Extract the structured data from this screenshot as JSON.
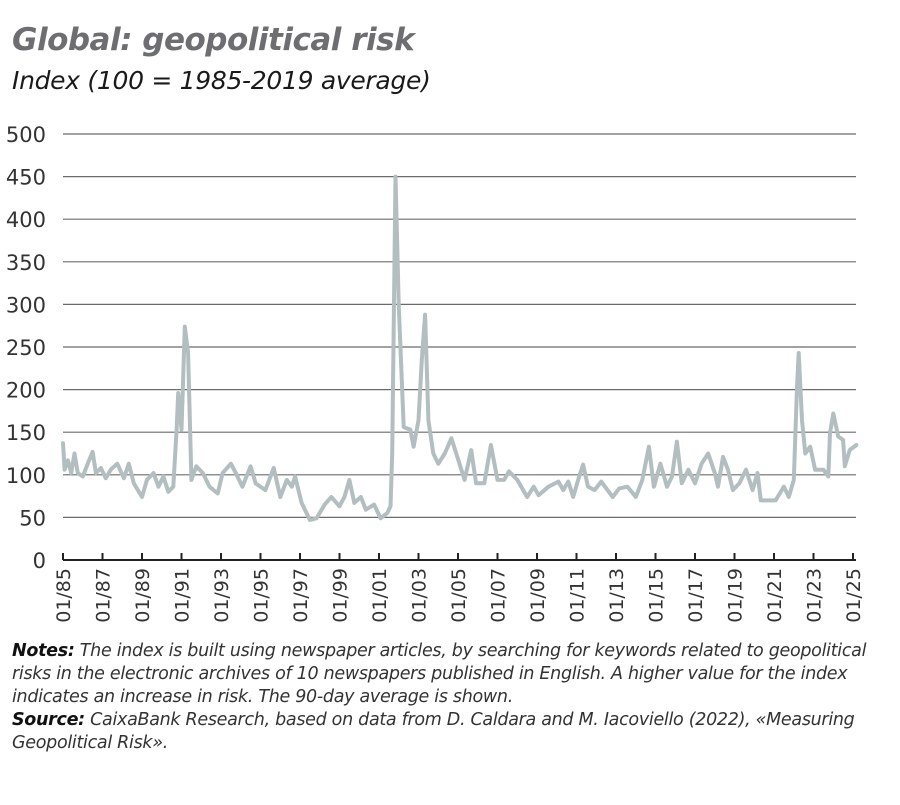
{
  "chart_data": {
    "type": "line",
    "title": "Global: geopolitical risk",
    "subtitle": "Index (100 = 1985-2019 average)",
    "xlabel": "",
    "ylabel": "",
    "ylim": [
      0,
      500
    ],
    "yticks": [
      "0",
      "50",
      "100",
      "150",
      "200",
      "250",
      "300",
      "350",
      "400",
      "450",
      "500"
    ],
    "xlim": [
      "1985-01",
      "2025-01"
    ],
    "xticks": [
      "01/85",
      "01/87",
      "01/89",
      "01/91",
      "01/93",
      "01/95",
      "01/97",
      "01/99",
      "01/01",
      "01/03",
      "01/05",
      "01/07",
      "01/09",
      "01/11",
      "01/13",
      "01/15",
      "01/17",
      "01/19",
      "01/21",
      "01/23",
      "01/25"
    ],
    "grid": "horizontal",
    "line_color": "#b3bec0",
    "series": [
      {
        "x": [
          "1985-01",
          "1985-02",
          "1985-04",
          "1985-06",
          "1985-08",
          "1985-10",
          "1986-01",
          "1986-04",
          "1986-07",
          "1986-09",
          "1986-12",
          "1987-03",
          "1987-06",
          "1987-10",
          "1988-02",
          "1988-05",
          "1988-08",
          "1989-01",
          "1989-04",
          "1989-08",
          "1989-11",
          "1990-02",
          "1990-05",
          "1990-08",
          "1990-10",
          "1990-11",
          "1991-01",
          "1991-03",
          "1991-05",
          "1991-07",
          "1991-10",
          "1992-02",
          "1992-06",
          "1992-11",
          "1993-02",
          "1993-07",
          "1993-10",
          "1994-02",
          "1994-07",
          "1994-10",
          "1995-04",
          "1995-09",
          "1996-01",
          "1996-05",
          "1996-08",
          "1996-10",
          "1997-02",
          "1997-07",
          "1997-11",
          "1998-04",
          "1998-08",
          "1999-01",
          "1999-04",
          "1999-07",
          "1999-10",
          "2000-02",
          "2000-05",
          "2000-10",
          "2001-02",
          "2001-06",
          "2001-08",
          "2001-09",
          "2001-11",
          "2002-01",
          "2002-04",
          "2002-08",
          "2002-10",
          "2003-01",
          "2003-03",
          "2003-05",
          "2003-07",
          "2003-10",
          "2004-01",
          "2004-05",
          "2004-09",
          "2005-05",
          "2005-09",
          "2005-12",
          "2006-05",
          "2006-09",
          "2007-01",
          "2007-05",
          "2007-08",
          "2008-01",
          "2008-07",
          "2008-11",
          "2009-02",
          "2009-08",
          "2010-02",
          "2010-05",
          "2010-08",
          "2010-11",
          "2011-02",
          "2011-05",
          "2011-08",
          "2011-12",
          "2012-04",
          "2012-11",
          "2013-03",
          "2013-08",
          "2014-01",
          "2014-05",
          "2014-09",
          "2014-12",
          "2015-04",
          "2015-08",
          "2015-11",
          "2016-02",
          "2016-05",
          "2016-09",
          "2017-01",
          "2017-05",
          "2017-09",
          "2018-01",
          "2018-03",
          "2018-06",
          "2018-09",
          "2018-12",
          "2019-04",
          "2019-08",
          "2019-12",
          "2020-03",
          "2020-05",
          "2020-10",
          "2021-02",
          "2021-07",
          "2021-10",
          "2022-01",
          "2022-03",
          "2022-04",
          "2022-06",
          "2022-08",
          "2022-11",
          "2023-02",
          "2023-07",
          "2023-10",
          "2023-11",
          "2024-01",
          "2024-04",
          "2024-07",
          "2024-08",
          "2024-11",
          "2025-03"
        ],
        "y": [
          137,
          106,
          117,
          102,
          125,
          102,
          98,
          113,
          127,
          102,
          108,
          96,
          106,
          113,
          96,
          113,
          90,
          74,
          94,
          102,
          86,
          98,
          80,
          86,
          153,
          196,
          153,
          274,
          243,
          94,
          110,
          102,
          86,
          78,
          102,
          113,
          102,
          86,
          110,
          90,
          82,
          108,
          74,
          94,
          86,
          98,
          67,
          47,
          49,
          65,
          74,
          63,
          74,
          94,
          67,
          74,
          59,
          65,
          49,
          55,
          63,
          125,
          450,
          297,
          156,
          153,
          133,
          164,
          235,
          288,
          164,
          125,
          113,
          125,
          143,
          94,
          129,
          90,
          90,
          135,
          94,
          94,
          104,
          94,
          74,
          86,
          76,
          86,
          92,
          82,
          92,
          74,
          94,
          112,
          86,
          82,
          92,
          74,
          84,
          86,
          74,
          94,
          133,
          86,
          113,
          86,
          98,
          139,
          90,
          106,
          90,
          113,
          125,
          102,
          86,
          121,
          106,
          82,
          90,
          106,
          82,
          102,
          70,
          70,
          70,
          86,
          74,
          94,
          203,
          243,
          164,
          125,
          133,
          106,
          106,
          98,
          149,
          172,
          145,
          141,
          110,
          129,
          135
        ]
      }
    ]
  },
  "notes": {
    "notes_label": "Notes:",
    "notes_text": " The index is built using newspaper articles, by searching for keywords related to geopolitical risks in the electronic archives of 10 newspapers published in English. A higher value for the index indicates an increase in risk. The 90-day average is shown.",
    "source_label": "Source:",
    "source_text": " CaixaBank Research, based on data from D. Caldara and M. Iacoviello (2022), «Measuring Geopolitical Risk»."
  }
}
